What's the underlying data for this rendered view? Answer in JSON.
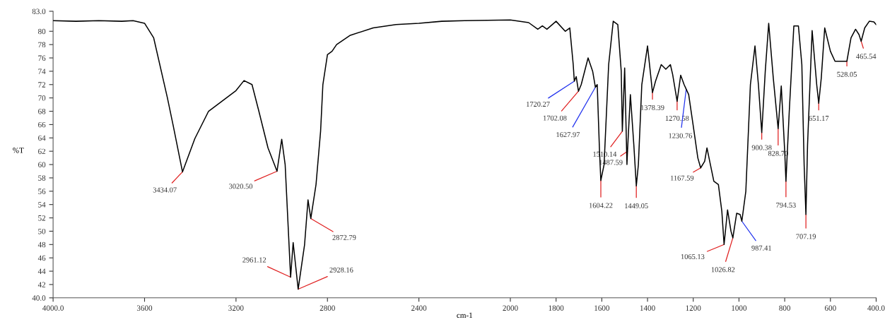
{
  "chart_data": {
    "type": "line",
    "xlabel": "cm-1",
    "ylabel": "%T",
    "xlim": [
      4000,
      400
    ],
    "ylim": [
      40,
      83
    ],
    "xticks": [
      {
        "value": 4000,
        "label": "4000.0"
      },
      3600,
      3200,
      2800,
      2400,
      2000,
      1800,
      1600,
      1400,
      1200,
      1000,
      800,
      600,
      {
        "value": 400,
        "label": "400.0"
      }
    ],
    "yticks": [
      {
        "value": 40,
        "label": "40.0"
      },
      42,
      44,
      46,
      48,
      50,
      52,
      54,
      56,
      58,
      60,
      62,
      64,
      66,
      68,
      70,
      72,
      74,
      76,
      78,
      80,
      {
        "value": 83,
        "label": "83.0"
      }
    ],
    "grid": false,
    "legend": false,
    "marker": "none",
    "line_style": "solid",
    "series": [
      {
        "color": "#000000",
        "x": [
          4000,
          3900,
          3800,
          3700,
          3650,
          3600,
          3560,
          3500,
          3475,
          3434.07,
          3380,
          3320,
          3200,
          3165,
          3130,
          3100,
          3060,
          3020.5,
          3000,
          2985,
          2961.12,
          2950,
          2928.16,
          2900,
          2885,
          2872.79,
          2850,
          2830,
          2820,
          2800,
          2780,
          2760,
          2700,
          2600,
          2500,
          2400,
          2300,
          2200,
          2000,
          1920,
          1880,
          1860,
          1840,
          1800,
          1760,
          1740,
          1725,
          1720.27,
          1712,
          1702.08,
          1690,
          1660,
          1640,
          1627.97,
          1620,
          1610,
          1604.22,
          1590,
          1570,
          1550,
          1530,
          1515,
          1510.14,
          1500,
          1490,
          1487.59,
          1475,
          1460,
          1449.05,
          1440,
          1425,
          1400,
          1385,
          1378.39,
          1365,
          1340,
          1320,
          1300,
          1290,
          1270.58,
          1255,
          1240,
          1230.76,
          1220,
          1200,
          1180,
          1167.59,
          1150,
          1140,
          1125,
          1110,
          1090,
          1075,
          1065.13,
          1050,
          1035,
          1026.82,
          1010,
          995,
          987.41,
          970,
          950,
          930,
          915,
          900.38,
          885,
          870,
          850,
          828.7,
          815,
          800,
          794.53,
          780,
          760,
          740,
          725,
          715,
          707.19,
          700,
          680,
          660,
          651.17,
          640,
          625,
          600,
          580,
          560,
          528.05,
          510,
          490,
          475,
          465.54,
          450,
          430,
          410,
          400
        ],
        "values": [
          81.6,
          81.5,
          81.6,
          81.5,
          81.6,
          81.2,
          79,
          70,
          65.9,
          58.9,
          63.9,
          68,
          71.1,
          72.6,
          72,
          68,
          62.5,
          59,
          63.8,
          60,
          43.1,
          48.3,
          41.3,
          48,
          54.7,
          51.9,
          57,
          65,
          72,
          76.5,
          77,
          78,
          79.4,
          80.5,
          81,
          81.2,
          81.5,
          81.6,
          81.7,
          81.3,
          80.3,
          80.8,
          80.3,
          81.5,
          80,
          80.5,
          75,
          72.5,
          73.2,
          71,
          72,
          76,
          74,
          71.6,
          72,
          62,
          57.6,
          60,
          75,
          81.5,
          81,
          74,
          65,
          74.5,
          60,
          62,
          70.5,
          63,
          56.8,
          60,
          72,
          77.8,
          73,
          70.8,
          72.5,
          75,
          74.3,
          75,
          73.5,
          69.5,
          73.4,
          72,
          71.3,
          70.5,
          65.8,
          61,
          59.5,
          60.5,
          62.5,
          60,
          57.5,
          57,
          53,
          48,
          53.2,
          50,
          49,
          52.7,
          52.5,
          51.5,
          56,
          72,
          77.8,
          72,
          64.8,
          74,
          81.2,
          73,
          65.4,
          71.8,
          62,
          57.5,
          68,
          80.8,
          80.8,
          75,
          60,
          52.5,
          63,
          80.1,
          72,
          69.2,
          73,
          80.5,
          77,
          75.5,
          75.5,
          75.5,
          79,
          80.3,
          79.5,
          78.5,
          80.5,
          81.5,
          81.4,
          81
        ]
      }
    ],
    "annotations": [
      {
        "text": "3434.07",
        "x": 3434.07,
        "y": 58.9
      },
      {
        "text": "3020.50",
        "x": 3020.5,
        "y": 59
      },
      {
        "text": "2961.12",
        "x": 2961.12,
        "y": 43.1
      },
      {
        "text": "2928.16",
        "x": 2928.16,
        "y": 41.3
      },
      {
        "text": "2872.79",
        "x": 2872.79,
        "y": 51.9
      },
      {
        "text": "1720.27",
        "x": 1720.27,
        "y": 72.5
      },
      {
        "text": "1702.08",
        "x": 1702.08,
        "y": 71
      },
      {
        "text": "1627.97",
        "x": 1627.97,
        "y": 71.6
      },
      {
        "text": "1604.22",
        "x": 1604.22,
        "y": 57.6
      },
      {
        "text": "1510.14",
        "x": 1510.14,
        "y": 65
      },
      {
        "text": "1487.59",
        "x": 1487.59,
        "y": 62
      },
      {
        "text": "1449.05",
        "x": 1449.05,
        "y": 56.8
      },
      {
        "text": "1378.39",
        "x": 1378.39,
        "y": 70.8
      },
      {
        "text": "1270.58",
        "x": 1270.58,
        "y": 69.5
      },
      {
        "text": "1230.76",
        "x": 1230.76,
        "y": 71.3
      },
      {
        "text": "1167.59",
        "x": 1167.59,
        "y": 59.5
      },
      {
        "text": "1065.13",
        "x": 1065.13,
        "y": 48
      },
      {
        "text": "1026.82",
        "x": 1026.82,
        "y": 49
      },
      {
        "text": "987.41",
        "x": 987.41,
        "y": 51.5
      },
      {
        "text": "900.38",
        "x": 900.38,
        "y": 64.8
      },
      {
        "text": "828.70",
        "x": 828.7,
        "y": 65.4
      },
      {
        "text": "794.53",
        "x": 794.53,
        "y": 57.5
      },
      {
        "text": "707.19",
        "x": 707.19,
        "y": 52.5
      },
      {
        "text": "651.17",
        "x": 651.17,
        "y": 69.2
      },
      {
        "text": "528.05",
        "x": 528.05,
        "y": 75.5
      },
      {
        "text": "465.54",
        "x": 465.54,
        "y": 78.5
      }
    ]
  }
}
